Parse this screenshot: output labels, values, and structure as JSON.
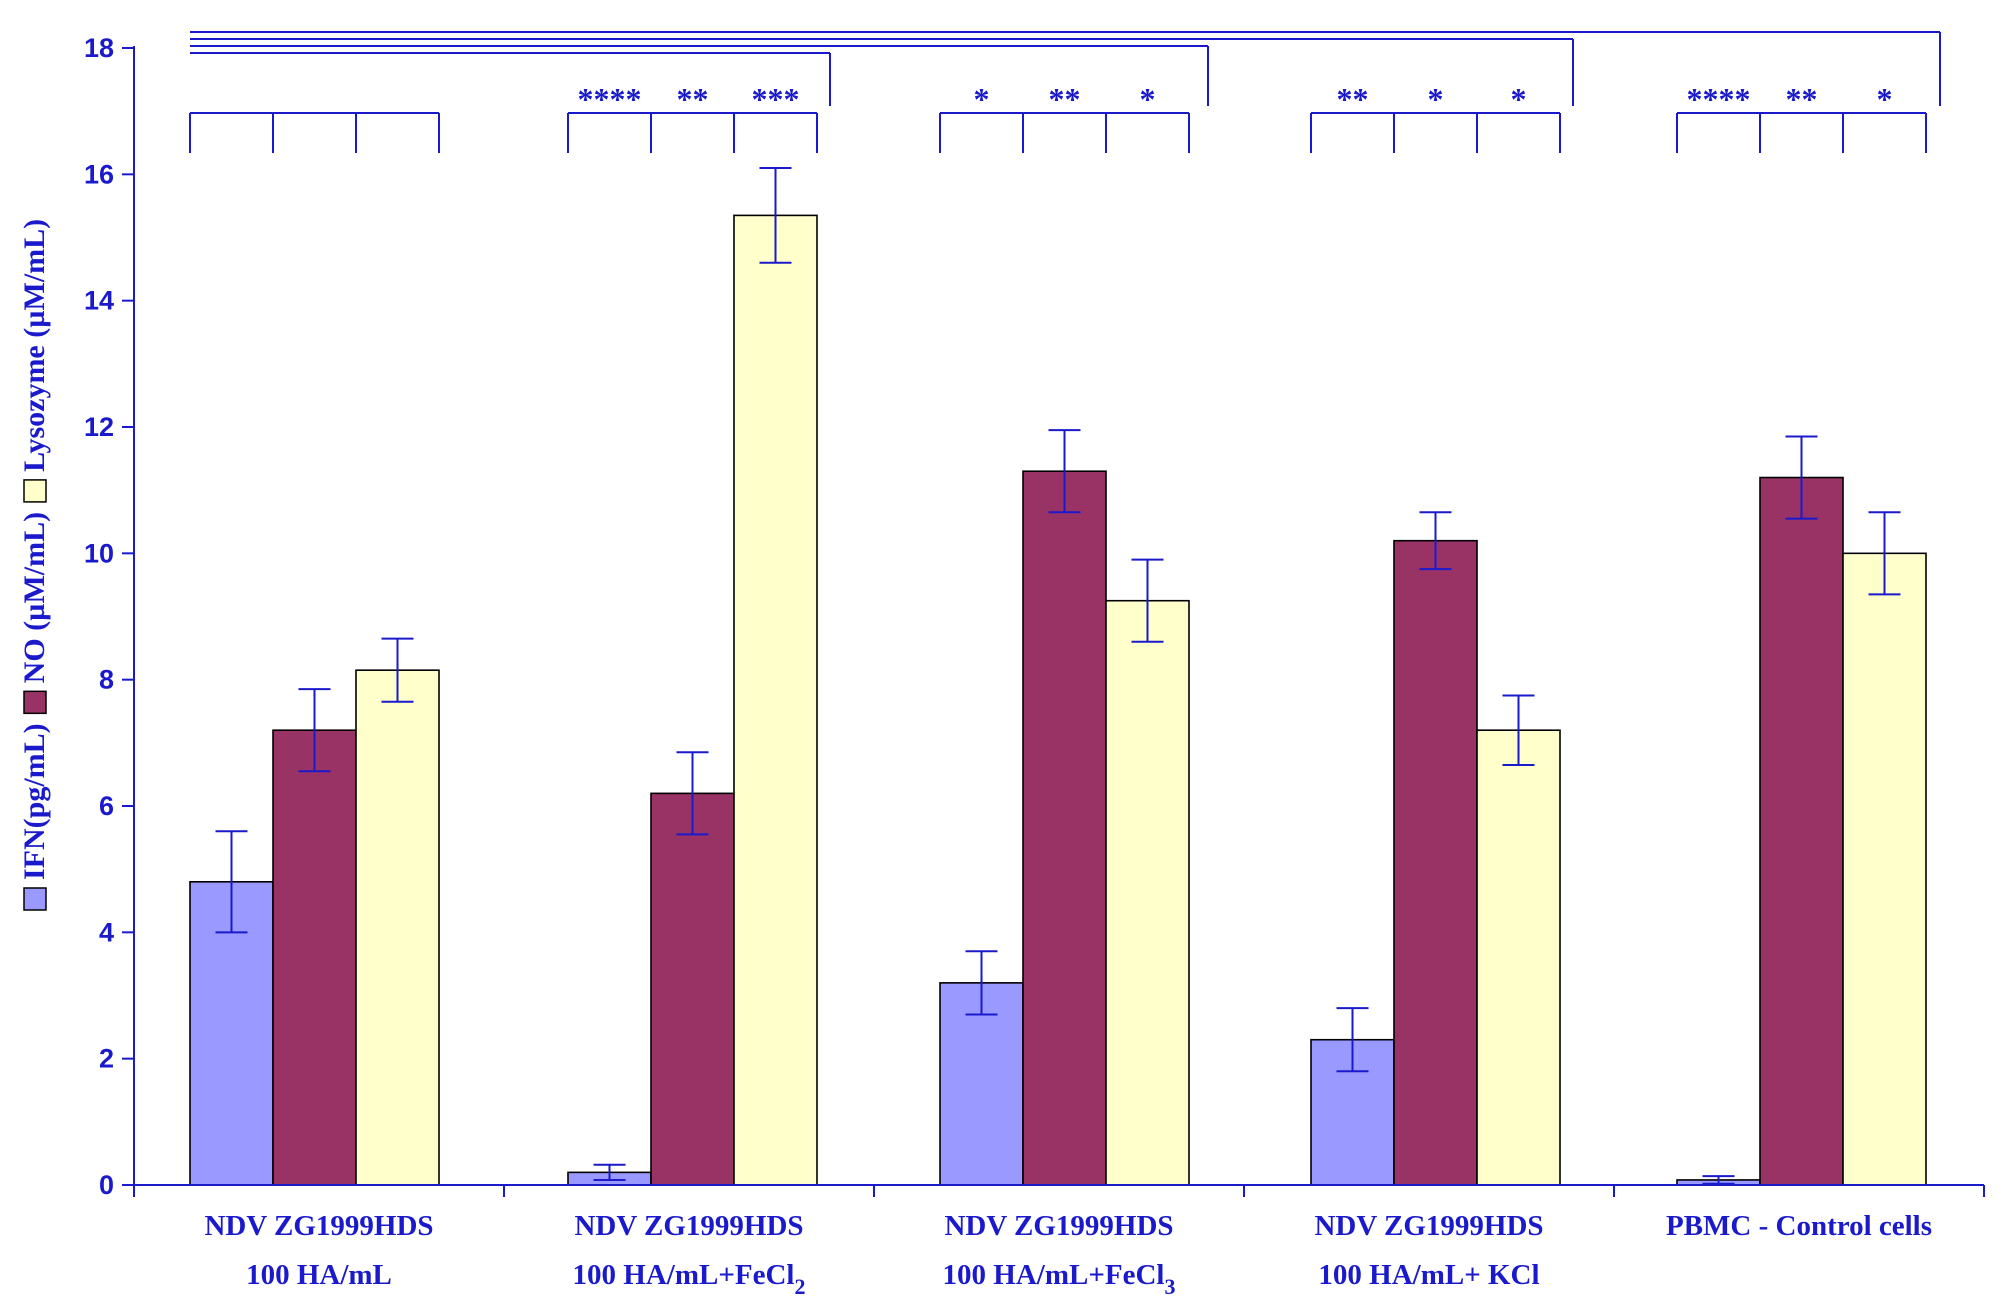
{
  "chart_data": {
    "type": "bar",
    "title": "",
    "xlabel": "",
    "ylabel": "",
    "ylim": [
      0,
      18
    ],
    "yticks": [
      0,
      2,
      4,
      6,
      8,
      10,
      12,
      14,
      16,
      18
    ],
    "categories": [
      {
        "line1": "NDV ZG1999HDS",
        "line2": "100 HA/mL",
        "sub": ""
      },
      {
        "line1": "NDV ZG1999HDS",
        "line2": "100 HA/mL+FeCl",
        "sub": "2"
      },
      {
        "line1": "NDV ZG1999HDS",
        "line2": "100 HA/mL+FeCl",
        "sub": "3"
      },
      {
        "line1": "NDV ZG1999HDS",
        "line2": "100 HA/mL+ KCl",
        "sub": ""
      },
      {
        "line1": "PBMC - Control cells",
        "line2": "",
        "sub": ""
      }
    ],
    "series": [
      {
        "name": "IFN(pg/mL)",
        "color": "#9999ff",
        "values": [
          4.8,
          0.2,
          3.2,
          2.3,
          0.08
        ],
        "errors": [
          0.8,
          0.12,
          0.5,
          0.5,
          0.06
        ]
      },
      {
        "name": "NO (µM/mL)",
        "color": "#993366",
        "values": [
          7.2,
          6.2,
          11.3,
          10.2,
          11.2
        ],
        "errors": [
          0.65,
          0.65,
          0.65,
          0.45,
          0.65
        ]
      },
      {
        "name": "Lysozyme (µM/mL)",
        "color": "#ffffcc",
        "values": [
          8.15,
          15.35,
          9.25,
          7.2,
          10.0
        ],
        "errors": [
          0.5,
          0.75,
          0.65,
          0.55,
          0.65
        ]
      }
    ],
    "significance": [
      [
        "",
        "",
        ""
      ],
      [
        "****",
        "**",
        "***"
      ],
      [
        "*",
        "**",
        "*"
      ],
      [
        "**",
        "*",
        "*"
      ],
      [
        "****",
        "**",
        "*"
      ]
    ],
    "legend": {
      "position": "left-vertical",
      "separator": " "
    },
    "colors": {
      "axis": "#1a1acc",
      "error_bar": "#1a1acc",
      "outline": "#000000"
    }
  }
}
